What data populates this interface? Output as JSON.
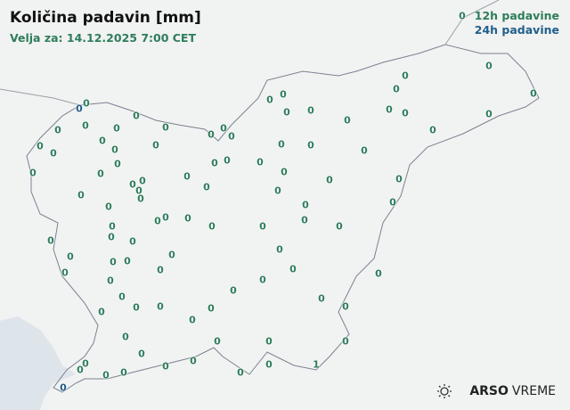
{
  "header": {
    "title": "Količina padavin [mm]",
    "valid_for": "Velja za: 14.12.2025 7:00 CET"
  },
  "legend": {
    "items": [
      {
        "label": "12h padavine",
        "color": "#2e7d5b"
      },
      {
        "label": "24h padavine",
        "color": "#1f5f8b"
      }
    ]
  },
  "map": {
    "land_color": "#f1f2f2",
    "sea_color": "#dde4ea",
    "border_color": "#7a8290",
    "stations": [
      {
        "v": "0",
        "t": "12h"
      },
      {
        "v": "0",
        "t": "24h"
      },
      {
        "v": "0",
        "t": "12h"
      },
      {
        "v": "0",
        "t": "12h"
      },
      {
        "v": "0",
        "t": "12h"
      },
      {
        "v": "0",
        "t": "12h"
      },
      {
        "v": "0",
        "t": "12h"
      },
      {
        "v": "0",
        "t": "12h"
      },
      {
        "v": "0",
        "t": "12h"
      },
      {
        "v": "0",
        "t": "12h"
      },
      {
        "v": "0",
        "t": "12h"
      },
      {
        "v": "0",
        "t": "12h"
      },
      {
        "v": "0",
        "t": "12h"
      },
      {
        "v": "0",
        "t": "12h"
      },
      {
        "v": "0",
        "t": "12h"
      },
      {
        "v": "0",
        "t": "12h"
      },
      {
        "v": "0",
        "t": "12h"
      },
      {
        "v": "0",
        "t": "12h"
      },
      {
        "v": "0",
        "t": "12h"
      },
      {
        "v": "0",
        "t": "12h"
      },
      {
        "v": "0",
        "t": "12h"
      },
      {
        "v": "0",
        "t": "12h"
      },
      {
        "v": "0",
        "t": "12h"
      },
      {
        "v": "0",
        "t": "12h"
      },
      {
        "v": "0",
        "t": "12h"
      },
      {
        "v": "0",
        "t": "12h"
      },
      {
        "v": "0",
        "t": "12h"
      },
      {
        "v": "0",
        "t": "12h"
      },
      {
        "v": "0",
        "t": "12h"
      },
      {
        "v": "0",
        "t": "12h"
      },
      {
        "v": "0",
        "t": "12h"
      },
      {
        "v": "0",
        "t": "12h"
      },
      {
        "v": "0",
        "t": "12h"
      },
      {
        "v": "0",
        "t": "12h"
      },
      {
        "v": "0",
        "t": "12h"
      },
      {
        "v": "0",
        "t": "12h"
      },
      {
        "v": "0",
        "t": "12h"
      },
      {
        "v": "0",
        "t": "12h"
      },
      {
        "v": "0",
        "t": "12h"
      },
      {
        "v": "0",
        "t": "12h"
      },
      {
        "v": "0",
        "t": "12h"
      },
      {
        "v": "0",
        "t": "12h"
      },
      {
        "v": "0",
        "t": "12h"
      },
      {
        "v": "0",
        "t": "12h"
      },
      {
        "v": "0",
        "t": "12h"
      },
      {
        "v": "0",
        "t": "12h"
      },
      {
        "v": "0",
        "t": "12h"
      },
      {
        "v": "0",
        "t": "12h"
      },
      {
        "v": "0",
        "t": "12h"
      },
      {
        "v": "0",
        "t": "12h"
      },
      {
        "v": "0",
        "t": "12h"
      },
      {
        "v": "0",
        "t": "12h"
      },
      {
        "v": "0",
        "t": "12h"
      },
      {
        "v": "0",
        "t": "12h"
      },
      {
        "v": "0",
        "t": "12h"
      },
      {
        "v": "0",
        "t": "12h"
      },
      {
        "v": "0",
        "t": "12h"
      },
      {
        "v": "0",
        "t": "12h"
      },
      {
        "v": "0",
        "t": "12h"
      },
      {
        "v": "0",
        "t": "12h"
      },
      {
        "v": "0",
        "t": "12h"
      },
      {
        "v": "0",
        "t": "12h"
      },
      {
        "v": "0",
        "t": "12h"
      },
      {
        "v": "0",
        "t": "12h"
      },
      {
        "v": "0",
        "t": "12h"
      },
      {
        "v": "0",
        "t": "12h"
      },
      {
        "v": "0",
        "t": "12h"
      },
      {
        "v": "0",
        "t": "12h"
      },
      {
        "v": "0",
        "t": "12h"
      },
      {
        "v": "0",
        "t": "12h"
      },
      {
        "v": "0",
        "t": "12h"
      },
      {
        "v": "0",
        "t": "12h"
      },
      {
        "v": "0",
        "t": "12h"
      },
      {
        "v": "0",
        "t": "12h"
      },
      {
        "v": "0",
        "t": "12h"
      },
      {
        "v": "0",
        "t": "12h"
      },
      {
        "v": "0",
        "t": "12h"
      },
      {
        "v": "0",
        "t": "12h"
      },
      {
        "v": "0",
        "t": "12h"
      },
      {
        "v": "0",
        "t": "12h"
      },
      {
        "v": "0",
        "t": "12h"
      },
      {
        "v": "0",
        "t": "12h"
      },
      {
        "v": "0",
        "t": "12h"
      },
      {
        "v": "0",
        "t": "12h"
      },
      {
        "v": "0",
        "t": "12h"
      },
      {
        "v": "0",
        "t": "12h"
      },
      {
        "v": "0",
        "t": "12h"
      },
      {
        "v": "0",
        "t": "12h"
      },
      {
        "v": "0",
        "t": "12h"
      },
      {
        "v": "0",
        "t": "12h"
      },
      {
        "v": "0",
        "t": "12h"
      },
      {
        "v": "0",
        "t": "12h"
      },
      {
        "v": "0",
        "t": "12h"
      },
      {
        "v": "0",
        "t": "12h"
      },
      {
        "v": "0",
        "t": "12h"
      },
      {
        "v": "1",
        "t": "12h"
      },
      {
        "v": "0",
        "t": "12h"
      },
      {
        "v": "0",
        "t": "12h"
      },
      {
        "v": "0",
        "t": "24h"
      },
      {
        "v": "0",
        "t": "12h"
      }
    ]
  },
  "logo": {
    "brand": "ARSO",
    "product": "VREME",
    "icon": "sun-cloud-icon"
  }
}
